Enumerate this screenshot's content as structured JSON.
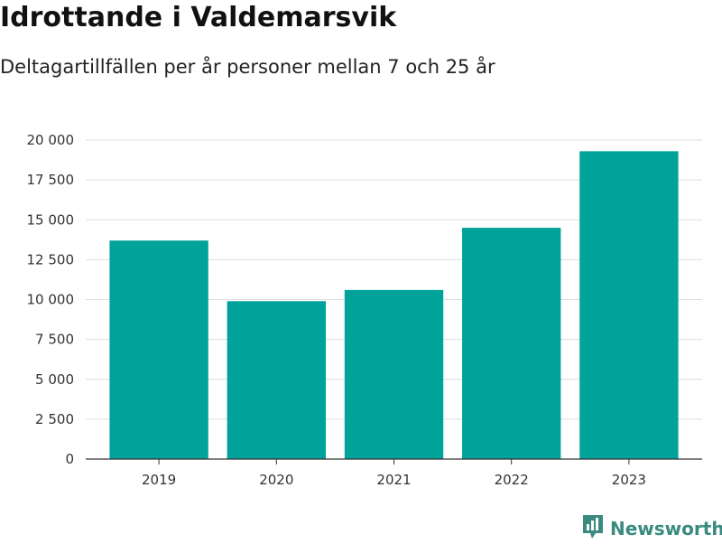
{
  "header": {
    "title": "Idrottande i Valdemarsvik",
    "subtitle": "Deltagartillfällen per år personer mellan 7 och 25 år"
  },
  "chart_data": {
    "type": "bar",
    "categories": [
      "2019",
      "2020",
      "2021",
      "2022",
      "2023"
    ],
    "values": [
      13700,
      9900,
      10600,
      14500,
      19300
    ],
    "ylim": [
      0,
      20000
    ],
    "yticks": [
      0,
      2500,
      5000,
      7500,
      10000,
      12500,
      15000,
      17500,
      20000
    ],
    "ytick_labels": [
      "0",
      "2 500",
      "5 000",
      "7 500",
      "10 000",
      "12 500",
      "15 000",
      "17 500",
      "20 000"
    ],
    "bar_color": "#00a39a",
    "grid": true,
    "xlabel": "",
    "ylabel": ""
  },
  "brand": {
    "name": "Newsworthy",
    "icon": "newsworthy-logo-icon",
    "color": "#3a8a80"
  }
}
